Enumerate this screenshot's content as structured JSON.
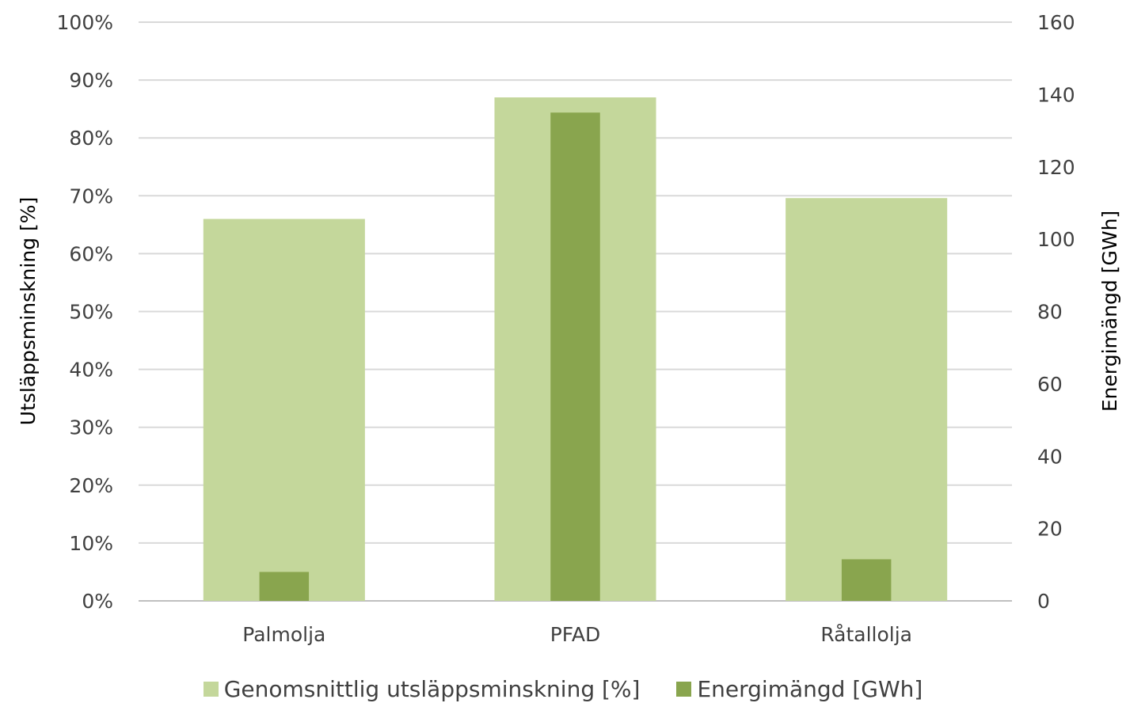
{
  "chart_data": {
    "type": "bar",
    "categories": [
      "Palmolja",
      "PFAD",
      "Råtallolja"
    ],
    "series": [
      {
        "name": "Genomsnittlig utsläppsminskning [%]",
        "axis": "left",
        "values": [
          66,
          87,
          69.6
        ],
        "color": "#c4d79b"
      },
      {
        "name": "Energimängd [GWh]",
        "axis": "right",
        "values": [
          8,
          135,
          11.5
        ],
        "color": "#89a54e"
      }
    ],
    "y_left": {
      "label": "Utsläppsminskning [%]",
      "ylim": [
        0,
        100
      ],
      "ticks": [
        "0%",
        "10%",
        "20%",
        "30%",
        "40%",
        "50%",
        "60%",
        "70%",
        "80%",
        "90%",
        "100%"
      ]
    },
    "y_right": {
      "label": "Energimängd [GWh]",
      "ylim": [
        0,
        160
      ],
      "ticks": [
        "0",
        "20",
        "40",
        "60",
        "80",
        "100",
        "120",
        "140",
        "160"
      ]
    },
    "grid": true,
    "legend_position": "bottom"
  }
}
